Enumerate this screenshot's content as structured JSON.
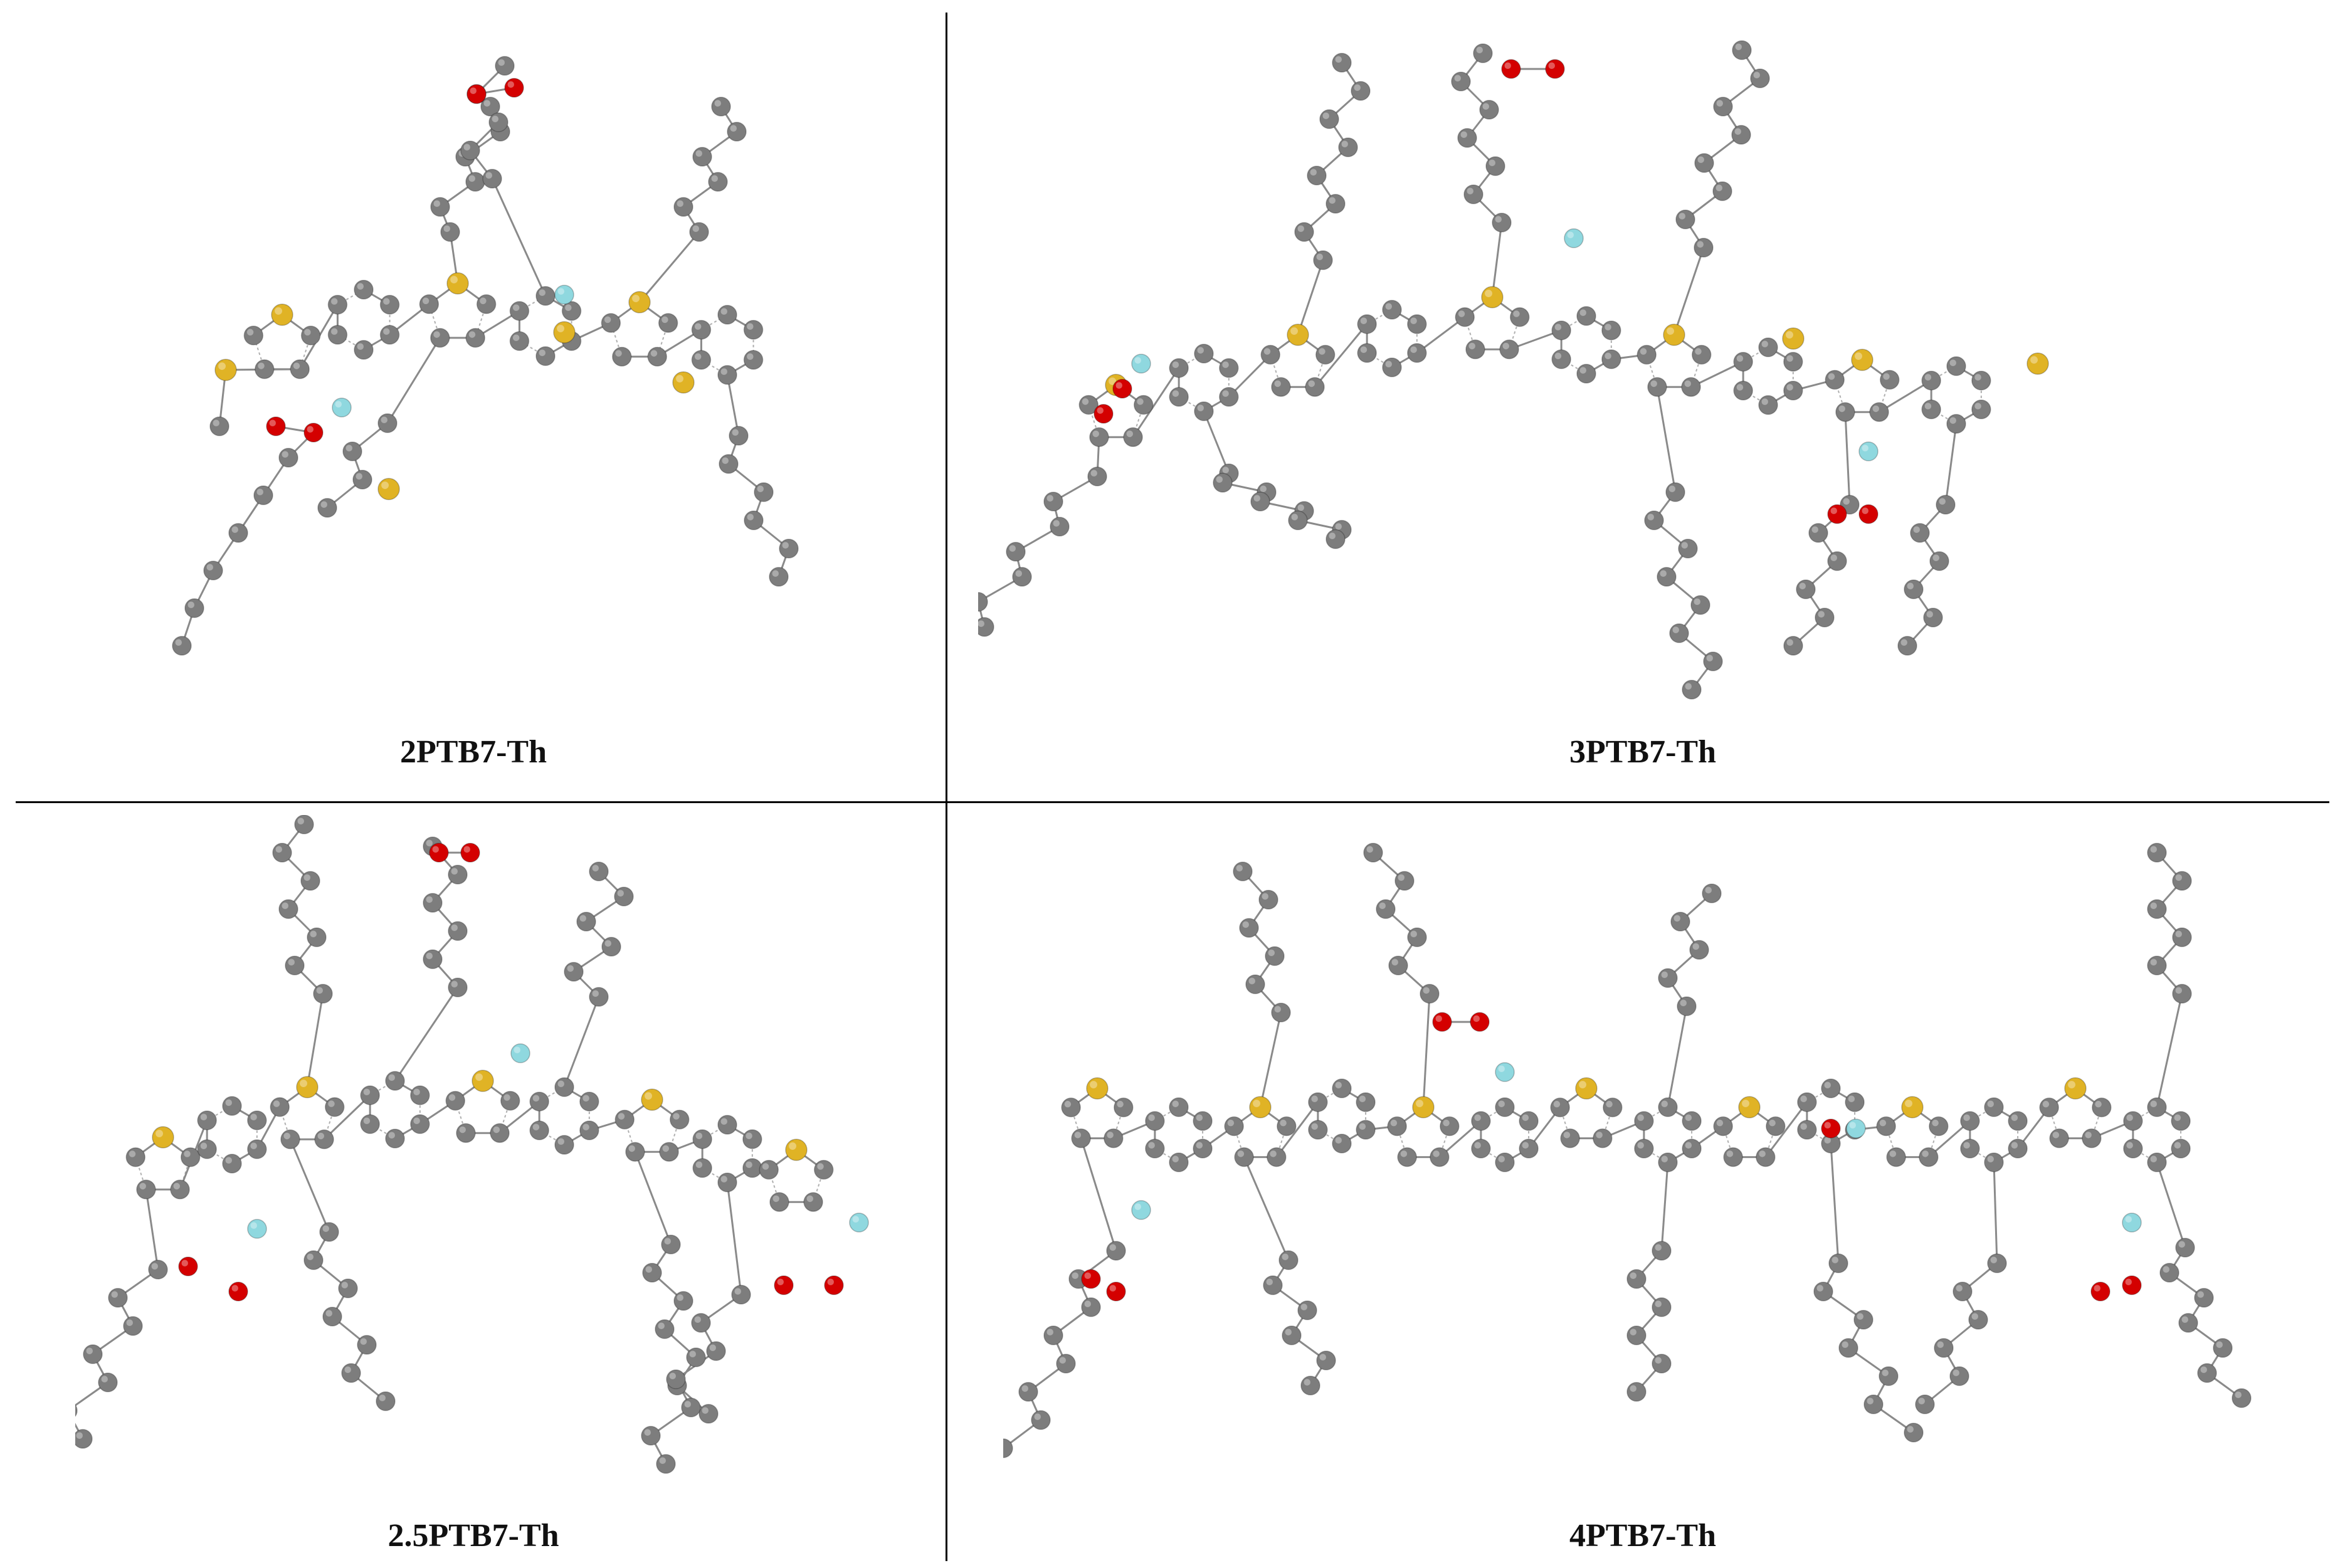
{
  "panels": [
    {
      "label": "2PTB7-Th"
    },
    {
      "label": "3PTB7-Th"
    },
    {
      "label": "2.5PTB7-Th"
    },
    {
      "label": "4PTB7-Th"
    }
  ],
  "atom_colors": {
    "carbon": "#7d7d7d",
    "sulfur": "#e0b325",
    "oxygen": "#d40000",
    "fluorine": "#8fd8df"
  }
}
